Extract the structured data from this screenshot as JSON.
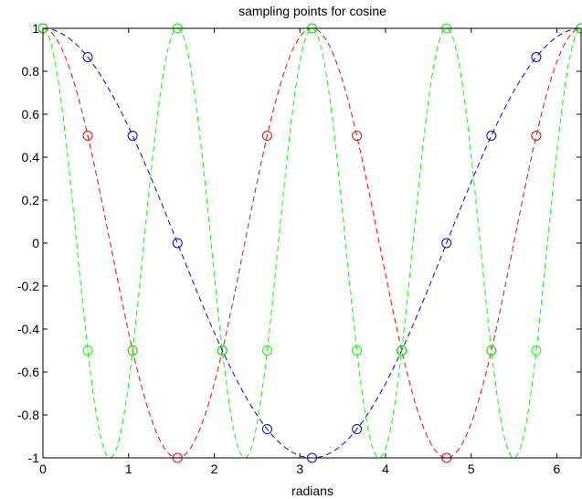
{
  "chart_data": {
    "type": "line",
    "title": "sampling points for cosine",
    "xlabel": "radians",
    "ylabel": "",
    "xlim": [
      0,
      6.2832
    ],
    "ylim": [
      -1,
      1
    ],
    "xticks": [
      "0",
      "1",
      "2",
      "3",
      "4",
      "5",
      "6"
    ],
    "yticks": [
      "-1",
      "-0.8",
      "-0.6",
      "-0.4",
      "-0.2",
      "0",
      "0.2",
      "0.4",
      "0.6",
      "0.8",
      "1"
    ],
    "grid": false,
    "series": [
      {
        "function": "cos(x)",
        "color": "#0000ff",
        "line_style": "dashed",
        "marker": "circle",
        "x": [
          0,
          0.5236,
          1.0472,
          1.5708,
          2.0944,
          2.618,
          3.1416,
          3.6652,
          4.1888,
          4.7124,
          5.236,
          5.7596,
          6.2832
        ],
        "y": [
          1,
          0.866,
          0.5,
          0,
          -0.5,
          -0.866,
          -1,
          -0.866,
          -0.5,
          0,
          0.5,
          0.866,
          1
        ]
      },
      {
        "function": "cos(2x)",
        "color": "#ff0000",
        "line_style": "dashed",
        "marker": "circle",
        "x": [
          0,
          0.5236,
          1.0472,
          1.5708,
          2.0944,
          2.618,
          3.1416,
          3.6652,
          4.1888,
          4.7124,
          5.236,
          5.7596,
          6.2832
        ],
        "y": [
          1,
          0.5,
          -0.5,
          -1,
          -0.5,
          0.5,
          1,
          0.5,
          -0.5,
          -1,
          -0.5,
          0.5,
          1
        ]
      },
      {
        "function": "cos(4x)",
        "color": "#00ff00",
        "line_style": "dashed",
        "marker": "circle",
        "x": [
          0,
          0.5236,
          1.0472,
          1.5708,
          2.0944,
          2.618,
          3.1416,
          3.6652,
          4.1888,
          4.7124,
          5.236,
          5.7596,
          6.2832
        ],
        "y": [
          1,
          -0.5,
          -0.5,
          1,
          -0.5,
          -0.5,
          1,
          -0.5,
          -0.5,
          1,
          -0.5,
          -0.5,
          1
        ]
      }
    ]
  }
}
